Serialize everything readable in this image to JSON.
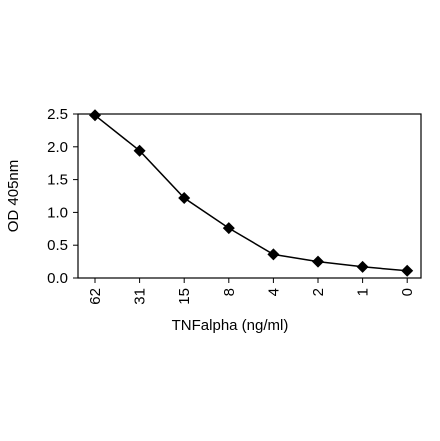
{
  "chart_data": {
    "type": "line",
    "title": "",
    "xlabel": "TNFalpha (ng/ml)",
    "ylabel": "OD 405nm",
    "categories": [
      "62",
      "31",
      "15",
      "8",
      "4",
      "2",
      "1",
      "0"
    ],
    "series": [
      {
        "values": [
          2.48,
          1.94,
          1.22,
          0.76,
          0.36,
          0.25,
          0.17,
          0.11
        ],
        "marker": "diamond",
        "color": "#000000"
      }
    ],
    "ylim": [
      0,
      2.5
    ],
    "yticks": [
      "0.0",
      "0.5",
      "1.0",
      "1.5",
      "2.0",
      "2.5"
    ],
    "grid": false,
    "legend": "none"
  }
}
